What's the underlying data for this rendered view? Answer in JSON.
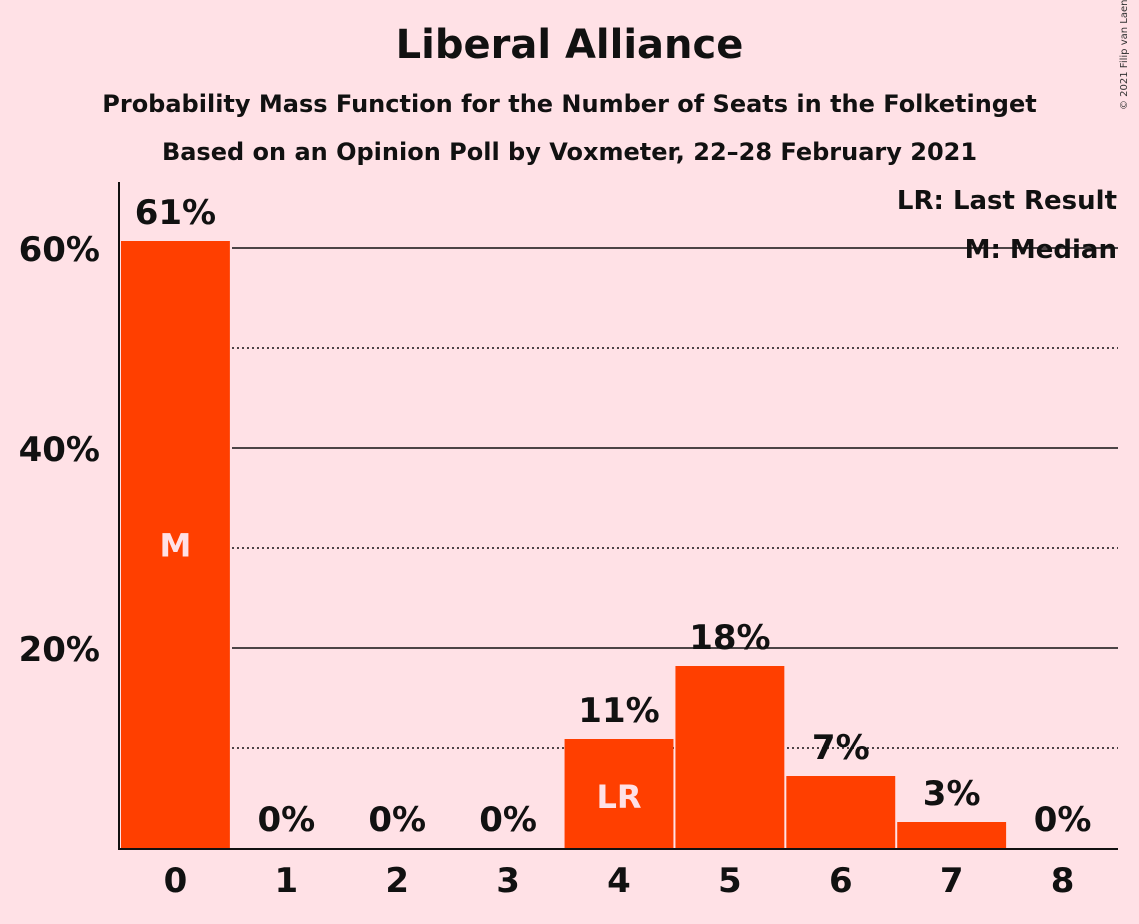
{
  "header": {
    "title": "Liberal Alliance",
    "subtitle1": "Probability Mass Function for the Number of Seats in the Folketinget",
    "subtitle2": "Based on an Opinion Poll by Voxmeter, 22–28 February 2021",
    "copyright": "© 2021 Filip van Laenen"
  },
  "legend": {
    "lr": "LR: Last Result",
    "m": "M: Median"
  },
  "colors": {
    "bar": "#FF3F00",
    "background": "#FFE1E6"
  },
  "chart_data": {
    "type": "bar",
    "categories": [
      "0",
      "1",
      "2",
      "3",
      "4",
      "5",
      "6",
      "7",
      "8"
    ],
    "values": [
      60.7,
      0,
      0,
      0,
      10.9,
      18.2,
      7.2,
      2.6,
      0
    ],
    "data_labels": [
      "61%",
      "0%",
      "0%",
      "0%",
      "11%",
      "18%",
      "7%",
      "3%",
      "0%"
    ],
    "ylim": [
      0,
      66
    ],
    "yticks": [
      {
        "value": 20,
        "label": "20%"
      },
      {
        "value": 40,
        "label": "40%"
      },
      {
        "value": 60,
        "label": "60%"
      }
    ],
    "minor_gridlines": [
      10,
      30,
      50
    ],
    "median_category": "0",
    "median_label": "M",
    "last_result_category": "4",
    "last_result_label": "LR"
  }
}
